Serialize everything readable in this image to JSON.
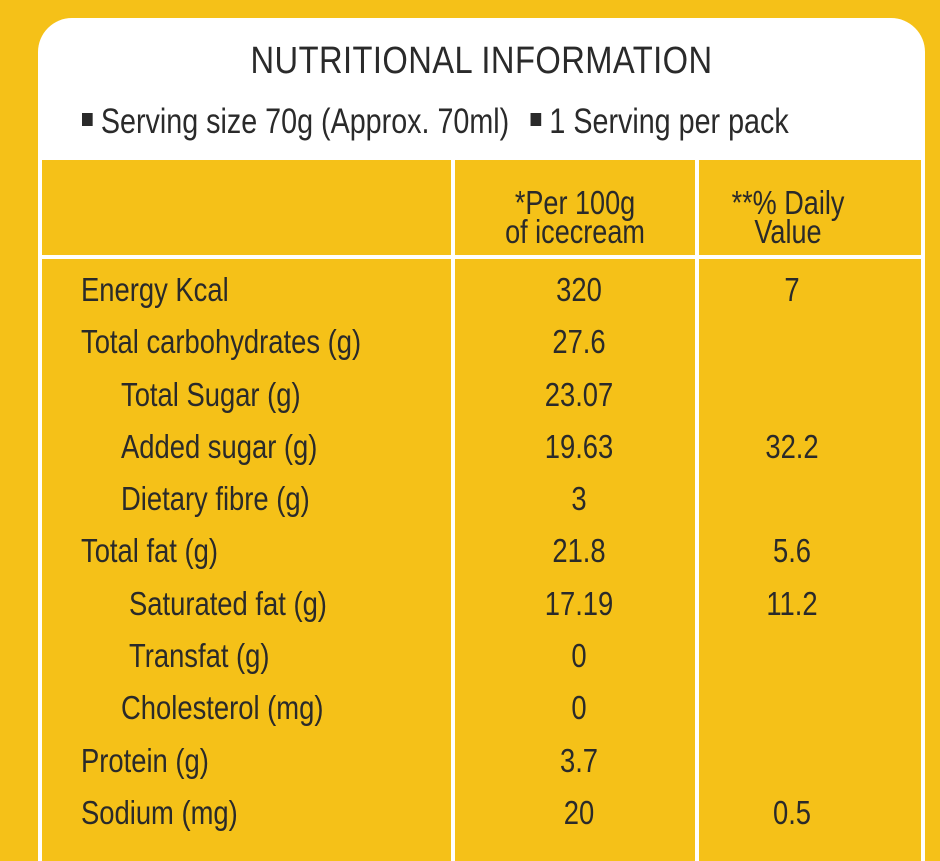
{
  "title": "NUTRITIONAL INFORMATION",
  "serving": {
    "size": "Serving size 70g  (Approx. 70ml)",
    "per_pack": "1 Serving per pack"
  },
  "columns": {
    "per100_line1": "*Per 100g",
    "per100_line2": "of icecream",
    "dv_line1": "**% Daily",
    "dv_line2": "Value"
  },
  "rows": [
    {
      "name": "Energy Kcal",
      "per100": "320",
      "dv": "7"
    },
    {
      "name": "Total carbohydrates (g)",
      "per100": "27.6",
      "dv": ""
    },
    {
      "name": "Total Sugar (g)",
      "per100": "23.07",
      "dv": ""
    },
    {
      "name": "Added sugar (g)",
      "per100": "19.63",
      "dv": "32.2"
    },
    {
      "name": "Dietary fibre (g)",
      "per100": "3",
      "dv": ""
    },
    {
      "name": "Total fat (g)",
      "per100": "21.8",
      "dv": "5.6"
    },
    {
      "name": "Saturated fat (g)",
      "per100": "17.19",
      "dv": "11.2"
    },
    {
      "name": "Transfat (g)",
      "per100": "0",
      "dv": ""
    },
    {
      "name": "Cholesterol (mg)",
      "per100": "0",
      "dv": ""
    },
    {
      "name": "Protein (g)",
      "per100": "3.7",
      "dv": ""
    },
    {
      "name": "Sodium (mg)",
      "per100": "20",
      "dv": "0.5"
    }
  ],
  "colors": {
    "background": "#f5c118",
    "panel": "#ffffff",
    "text": "#2a2a2a"
  }
}
